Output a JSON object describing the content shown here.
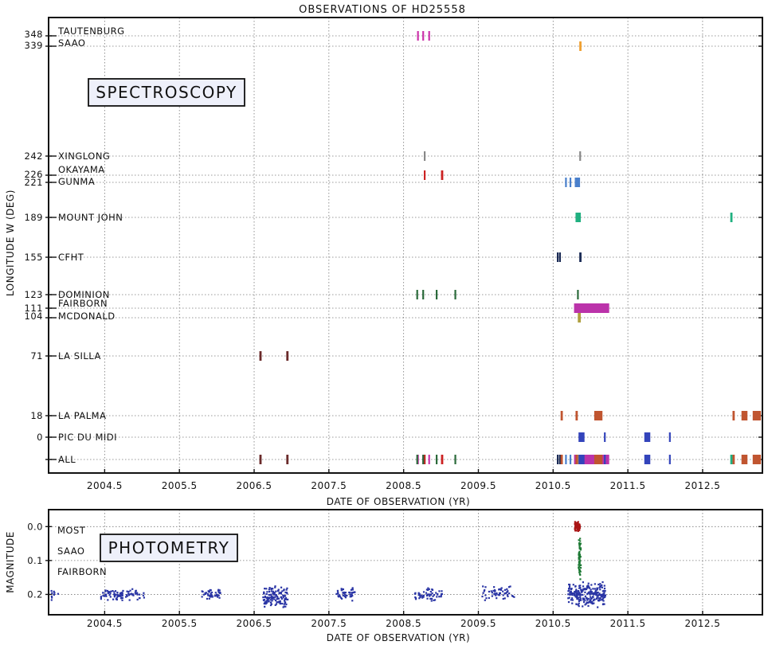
{
  "chart_data": [
    {
      "type": "timeline",
      "name": "spectroscopy",
      "title": "OBSERVATIONS OF HD25558",
      "box_label": "SPECTROSCOPY",
      "xlabel": "DATE OF OBSERVATION (YR)",
      "ylabel": "LONGITUDE W (DEG)",
      "xlim": [
        2003.75,
        2013.3
      ],
      "xticks": [
        2004.5,
        2005.5,
        2006.5,
        2007.5,
        2008.5,
        2009.5,
        2010.5,
        2011.5,
        2012.5
      ],
      "xtick_labels": [
        "2004.5",
        "2005.5",
        "2006.5",
        "2007.5",
        "2008.5",
        "2009.5",
        "2010.5",
        "2011.5",
        "2012.5"
      ],
      "grid": true,
      "sites": [
        {
          "name": "TAUTENBURG",
          "tick": "348",
          "color": "#cc33aa",
          "obs": [
            [
              2008.68,
              2008.68
            ],
            [
              2008.75,
              2008.75
            ],
            [
              2008.83,
              2008.83
            ]
          ]
        },
        {
          "name": "SAAO",
          "tick": "339",
          "color": "#f0a030",
          "obs": [
            [
              2010.85,
              2010.88
            ]
          ]
        },
        {
          "name": "XINGLONG",
          "tick": "242",
          "color": "#888888",
          "obs": [
            [
              2008.77,
              2008.77
            ],
            [
              2010.85,
              2010.85
            ]
          ]
        },
        {
          "name": "OKAYAMA",
          "tick": "226",
          "color": "#cc2222",
          "obs": [
            [
              2008.77,
              2008.77
            ],
            [
              2009.0,
              2009.03
            ]
          ]
        },
        {
          "name": "GUNMA",
          "tick": "221",
          "color": "#4a80cc",
          "obs": [
            [
              2010.66,
              2010.66
            ],
            [
              2010.72,
              2010.72
            ],
            [
              2010.79,
              2010.86
            ]
          ]
        },
        {
          "name": "MOUNT JOHN",
          "tick": "189",
          "color": "#20b080",
          "obs": [
            [
              2010.8,
              2010.87
            ],
            [
              2012.87,
              2012.9
            ]
          ]
        },
        {
          "name": "CFHT",
          "tick": "155",
          "color": "#1a2a55",
          "obs": [
            [
              2010.55,
              2010.55
            ],
            [
              2010.58,
              2010.58
            ],
            [
              2010.85,
              2010.88
            ]
          ]
        },
        {
          "name": "DOMINION",
          "tick": "123",
          "color": "#2a6a3a",
          "obs": [
            [
              2008.67,
              2008.67
            ],
            [
              2008.75,
              2008.75
            ],
            [
              2008.93,
              2008.93
            ],
            [
              2009.18,
              2009.18
            ],
            [
              2010.82,
              2010.82
            ]
          ]
        },
        {
          "name": "FAIRBORN",
          "tick": "111",
          "color": "#bb33aa",
          "obs": [
            [
              2010.78,
              2011.25
            ]
          ]
        },
        {
          "name": "MCDONALD",
          "tick": "104",
          "color": "#b0a040",
          "obs": [
            [
              2010.83,
              2010.87
            ]
          ]
        },
        {
          "name": "LA SILLA",
          "tick": "71",
          "color": "#6a2a2a",
          "obs": [
            [
              2006.57,
              2006.6
            ],
            [
              2006.93,
              2006.96
            ]
          ]
        },
        {
          "name": "LA PALMA",
          "tick": "18",
          "color": "#c05530",
          "obs": [
            [
              2010.6,
              2010.63
            ],
            [
              2010.8,
              2010.83
            ],
            [
              2011.05,
              2011.16
            ],
            [
              2012.9,
              2012.93
            ],
            [
              2013.02,
              2013.1
            ],
            [
              2013.17,
              2013.28
            ]
          ]
        },
        {
          "name": "PIC DU MIDI",
          "tick": "0",
          "color": "#3344bb",
          "obs": [
            [
              2010.84,
              2010.92
            ],
            [
              2011.18,
              2011.2
            ],
            [
              2011.72,
              2011.8
            ],
            [
              2012.05,
              2012.07
            ]
          ]
        },
        {
          "name": "ALL",
          "tick": "",
          "color": "#555555",
          "obs": []
        }
      ]
    },
    {
      "type": "scatter",
      "name": "photometry",
      "box_label": "PHOTOMETRY",
      "xlabel": "DATE OF OBSERVATION (YR)",
      "ylabel": "MAGNITUDE",
      "xlim": [
        2003.75,
        2013.3
      ],
      "ylim": [
        0.26,
        -0.05
      ],
      "yticks": [
        0.0,
        0.1,
        0.2
      ],
      "ytick_labels": [
        "0.0",
        "0.1",
        "0.2"
      ],
      "xticks": [
        2004.5,
        2005.5,
        2006.5,
        2007.5,
        2008.5,
        2009.5,
        2010.5,
        2011.5,
        2012.5
      ],
      "xtick_labels": [
        "2004.5",
        "2005.5",
        "2006.5",
        "2007.5",
        "2008.5",
        "2009.5",
        "2010.5",
        "2011.5",
        "2012.5"
      ],
      "grid": true,
      "series": [
        {
          "name": "MOST",
          "color": "#aa1515",
          "label_mag": 0.0,
          "clusters": [
            {
              "x": [
                2010.79,
                2010.86
              ],
              "y": [
                -0.015,
                0.015
              ],
              "n": 90
            }
          ]
        },
        {
          "name": "SAAO",
          "color": "#1e7a35",
          "label_mag": 0.1,
          "clusters": [
            {
              "x": [
                2010.84,
                2010.87
              ],
              "y": [
                0.02,
                0.16
              ],
              "n": 60
            }
          ]
        },
        {
          "name": "FAIRBORN",
          "color": "#2a35a5",
          "label_mag": 0.2,
          "clusters": [
            {
              "x": [
                2003.78,
                2003.88
              ],
              "y": [
                0.18,
                0.23
              ],
              "n": 10
            },
            {
              "x": [
                2004.45,
                2004.75
              ],
              "y": [
                0.18,
                0.22
              ],
              "n": 60
            },
            {
              "x": [
                2004.78,
                2005.05
              ],
              "y": [
                0.18,
                0.22
              ],
              "n": 30
            },
            {
              "x": [
                2005.8,
                2006.05
              ],
              "y": [
                0.18,
                0.22
              ],
              "n": 45
            },
            {
              "x": [
                2006.62,
                2006.95
              ],
              "y": [
                0.17,
                0.24
              ],
              "n": 130
            },
            {
              "x": [
                2007.6,
                2007.85
              ],
              "y": [
                0.18,
                0.22
              ],
              "n": 45
            },
            {
              "x": [
                2008.65,
                2009.02
              ],
              "y": [
                0.18,
                0.22
              ],
              "n": 55
            },
            {
              "x": [
                2009.55,
                2009.98
              ],
              "y": [
                0.17,
                0.22
              ],
              "n": 55
            },
            {
              "x": [
                2010.7,
                2011.2
              ],
              "y": [
                0.16,
                0.24
              ],
              "n": 230
            }
          ]
        }
      ]
    }
  ]
}
